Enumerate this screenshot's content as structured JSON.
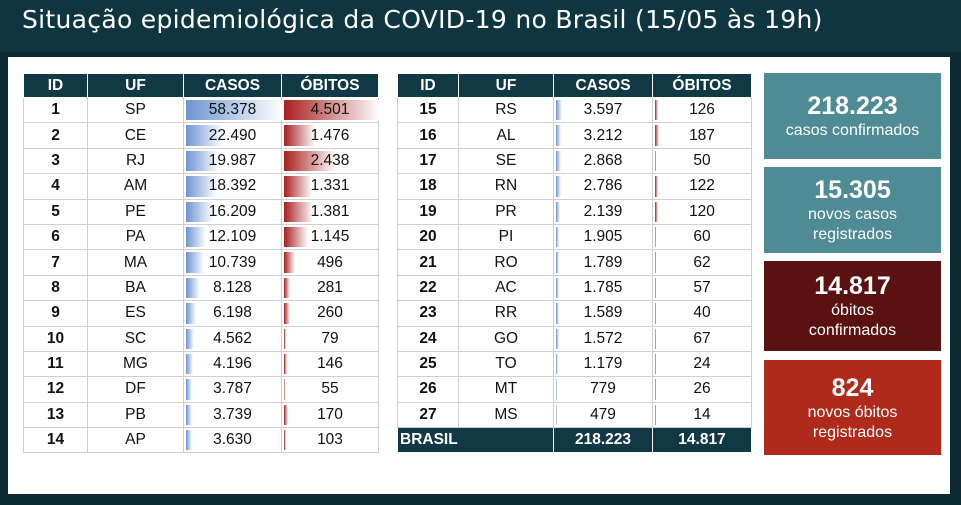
{
  "title": "Situação epidemiológica da COVID-19 no Brasil (15/05 às 19h)",
  "headers": {
    "id": "ID",
    "uf": "UF",
    "casos": "CASOS",
    "obitos": "ÓBITOS"
  },
  "colors": {
    "header_bg": "#113945",
    "cases_bar": "#6e95d0",
    "deaths_bar": "#a82020",
    "stat_teal": "#4e8b94",
    "stat_dark_red": "#5a1111",
    "stat_red": "#b02a1c"
  },
  "bar_scale": {
    "casos_max": 58378,
    "obitos_max": 4501
  },
  "table1": [
    {
      "id": "1",
      "uf": "SP",
      "casos": "58.378",
      "obitos": "4.501",
      "casos_n": 58378,
      "obitos_n": 4501
    },
    {
      "id": "2",
      "uf": "CE",
      "casos": "22.490",
      "obitos": "1.476",
      "casos_n": 22490,
      "obitos_n": 1476
    },
    {
      "id": "3",
      "uf": "RJ",
      "casos": "19.987",
      "obitos": "2.438",
      "casos_n": 19987,
      "obitos_n": 2438
    },
    {
      "id": "4",
      "uf": "AM",
      "casos": "18.392",
      "obitos": "1.331",
      "casos_n": 18392,
      "obitos_n": 1331
    },
    {
      "id": "5",
      "uf": "PE",
      "casos": "16.209",
      "obitos": "1.381",
      "casos_n": 16209,
      "obitos_n": 1381
    },
    {
      "id": "6",
      "uf": "PA",
      "casos": "12.109",
      "obitos": "1.145",
      "casos_n": 12109,
      "obitos_n": 1145
    },
    {
      "id": "7",
      "uf": "MA",
      "casos": "10.739",
      "obitos": "496",
      "casos_n": 10739,
      "obitos_n": 496
    },
    {
      "id": "8",
      "uf": "BA",
      "casos": "8.128",
      "obitos": "281",
      "casos_n": 8128,
      "obitos_n": 281
    },
    {
      "id": "9",
      "uf": "ES",
      "casos": "6.198",
      "obitos": "260",
      "casos_n": 6198,
      "obitos_n": 260
    },
    {
      "id": "10",
      "uf": "SC",
      "casos": "4.562",
      "obitos": "79",
      "casos_n": 4562,
      "obitos_n": 79
    },
    {
      "id": "11",
      "uf": "MG",
      "casos": "4.196",
      "obitos": "146",
      "casos_n": 4196,
      "obitos_n": 146
    },
    {
      "id": "12",
      "uf": "DF",
      "casos": "3.787",
      "obitos": "55",
      "casos_n": 3787,
      "obitos_n": 55
    },
    {
      "id": "13",
      "uf": "PB",
      "casos": "3.739",
      "obitos": "170",
      "casos_n": 3739,
      "obitos_n": 170
    },
    {
      "id": "14",
      "uf": "AP",
      "casos": "3.630",
      "obitos": "103",
      "casos_n": 3630,
      "obitos_n": 103
    }
  ],
  "table2": [
    {
      "id": "15",
      "uf": "RS",
      "casos": "3.597",
      "obitos": "126",
      "casos_n": 3597,
      "obitos_n": 126
    },
    {
      "id": "16",
      "uf": "AL",
      "casos": "3.212",
      "obitos": "187",
      "casos_n": 3212,
      "obitos_n": 187
    },
    {
      "id": "17",
      "uf": "SE",
      "casos": "2.868",
      "obitos": "50",
      "casos_n": 2868,
      "obitos_n": 50
    },
    {
      "id": "18",
      "uf": "RN",
      "casos": "2.786",
      "obitos": "122",
      "casos_n": 2786,
      "obitos_n": 122
    },
    {
      "id": "19",
      "uf": "PR",
      "casos": "2.139",
      "obitos": "120",
      "casos_n": 2139,
      "obitos_n": 120
    },
    {
      "id": "20",
      "uf": "PI",
      "casos": "1.905",
      "obitos": "60",
      "casos_n": 1905,
      "obitos_n": 60
    },
    {
      "id": "21",
      "uf": "RO",
      "casos": "1.789",
      "obitos": "62",
      "casos_n": 1789,
      "obitos_n": 62
    },
    {
      "id": "22",
      "uf": "AC",
      "casos": "1.785",
      "obitos": "57",
      "casos_n": 1785,
      "obitos_n": 57
    },
    {
      "id": "23",
      "uf": "RR",
      "casos": "1.589",
      "obitos": "40",
      "casos_n": 1589,
      "obitos_n": 40
    },
    {
      "id": "24",
      "uf": "GO",
      "casos": "1.572",
      "obitos": "67",
      "casos_n": 1572,
      "obitos_n": 67
    },
    {
      "id": "25",
      "uf": "TO",
      "casos": "1.179",
      "obitos": "24",
      "casos_n": 1179,
      "obitos_n": 24
    },
    {
      "id": "26",
      "uf": "MT",
      "casos": "779",
      "obitos": "26",
      "casos_n": 779,
      "obitos_n": 26
    },
    {
      "id": "27",
      "uf": "MS",
      "casos": "479",
      "obitos": "14",
      "casos_n": 479,
      "obitos_n": 14
    }
  ],
  "total": {
    "label": "BRASIL",
    "casos": "218.223",
    "obitos": "14.817"
  },
  "stats": [
    {
      "num": "218.223",
      "lines": [
        "casos confirmados"
      ]
    },
    {
      "num": "15.305",
      "lines": [
        "novos casos",
        "registrados"
      ]
    },
    {
      "num": "14.817",
      "lines": [
        "óbitos",
        "confirmados"
      ]
    },
    {
      "num": "824",
      "lines": [
        "novos óbitos",
        "registrados"
      ]
    }
  ]
}
